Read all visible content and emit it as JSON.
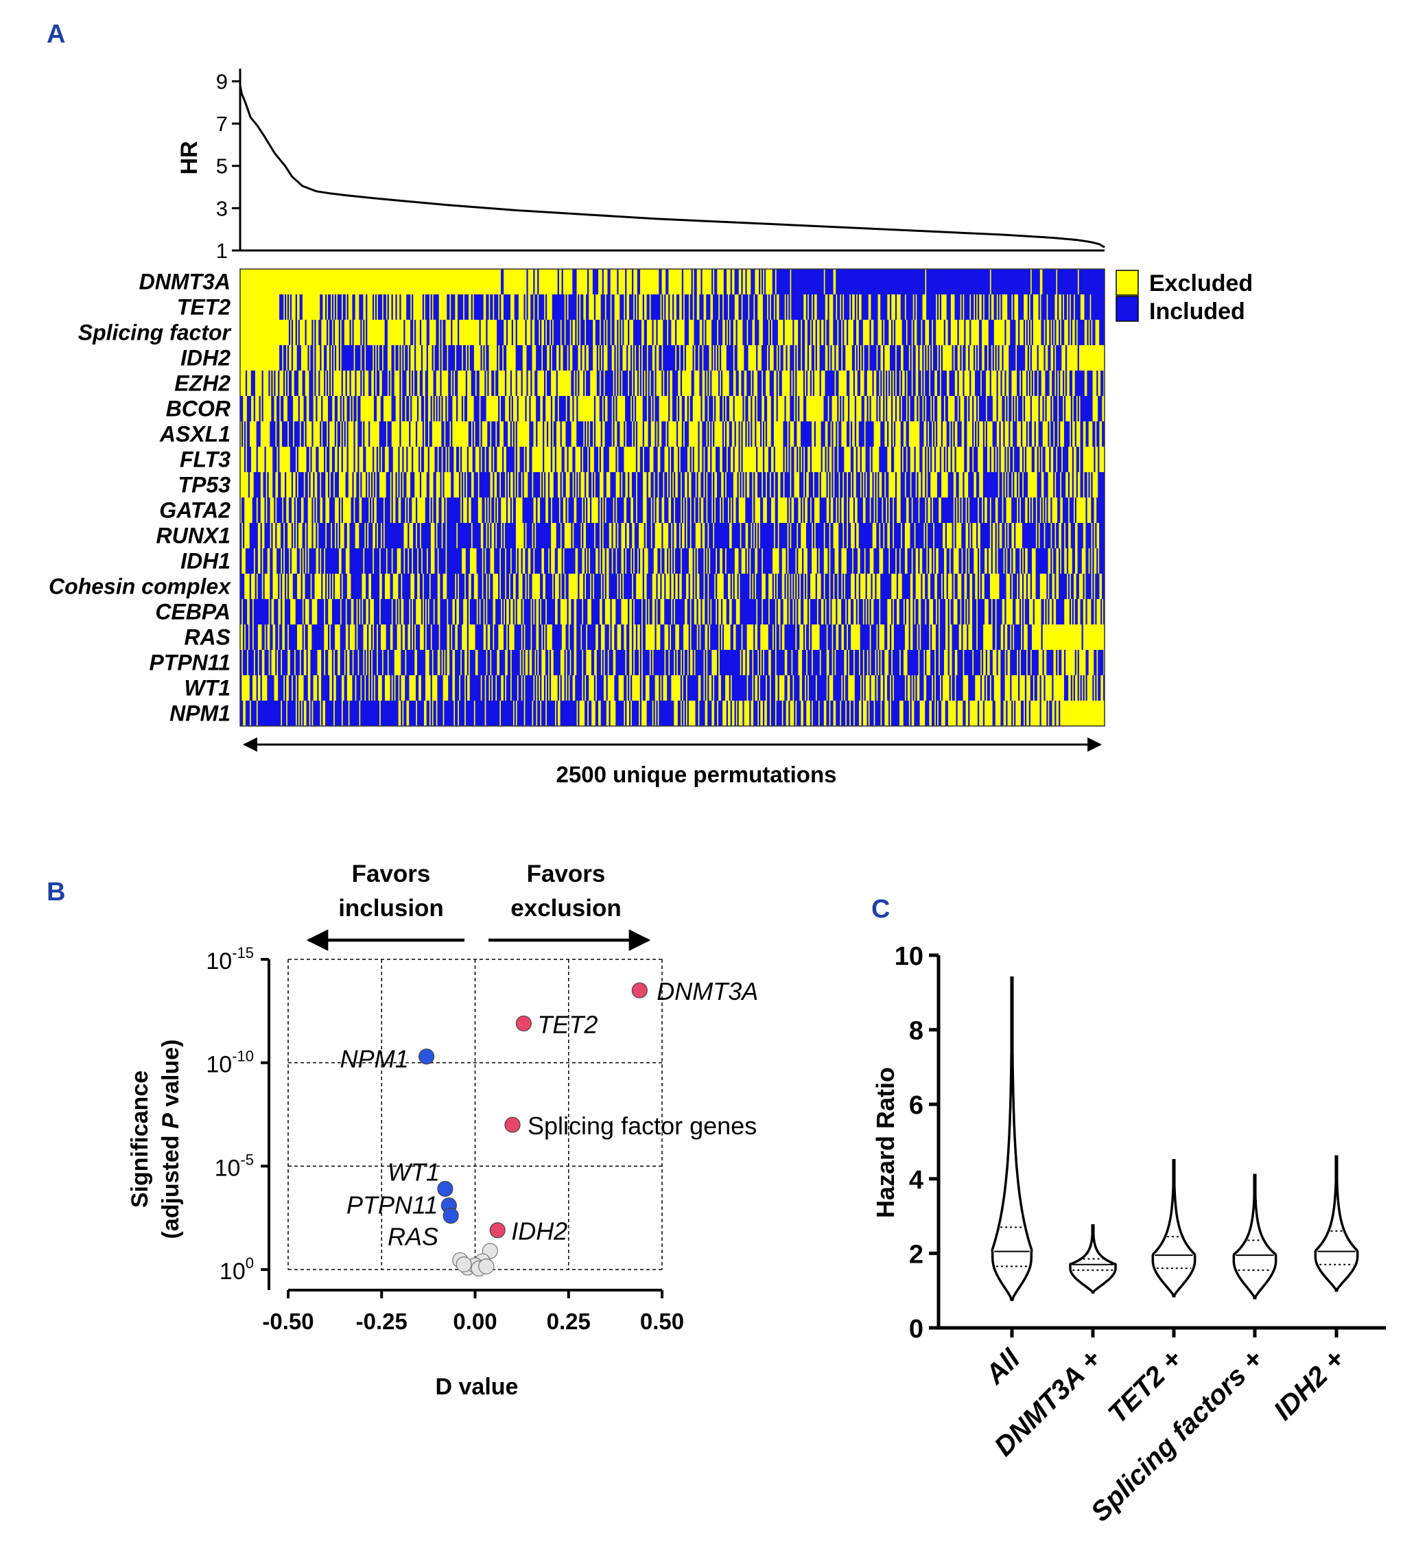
{
  "panels": {
    "a": "A",
    "b": "B",
    "c": "C"
  },
  "colors": {
    "excluded": "#ffff00",
    "included": "#1212e8",
    "favor_exclusion": "#e8456b",
    "favor_inclusion": "#2a55e0",
    "nonsig": "#e4e4e4",
    "axis": "#000000"
  },
  "chart_data": [
    {
      "id": "hr_curve",
      "type": "line",
      "ylabel": "HR",
      "yticks": [
        1,
        3,
        5,
        7,
        9
      ],
      "ylim": [
        1,
        9.6
      ],
      "xlim": [
        0,
        2500
      ],
      "x": [
        0,
        5,
        15,
        30,
        50,
        70,
        100,
        130,
        150,
        180,
        220,
        260,
        300,
        400,
        500,
        600,
        800,
        1000,
        1200,
        1400,
        1600,
        1800,
        2000,
        2200,
        2350,
        2420,
        2460,
        2485,
        2500
      ],
      "y": [
        8.8,
        8.4,
        8.0,
        7.3,
        6.9,
        6.4,
        5.6,
        5.0,
        4.5,
        4.05,
        3.8,
        3.7,
        3.62,
        3.45,
        3.3,
        3.15,
        2.9,
        2.7,
        2.5,
        2.35,
        2.2,
        2.05,
        1.9,
        1.75,
        1.6,
        1.5,
        1.4,
        1.3,
        1.15
      ]
    },
    {
      "id": "heatmap",
      "type": "heatmap",
      "rows": [
        "DNMT3A",
        "TET2",
        "Splicing factor",
        "IDH2",
        "EZH2",
        "BCOR",
        "ASXL1",
        "FLT3",
        "TP53",
        "GATA2",
        "RUNX1",
        "IDH1",
        "Cohesin complex",
        "CEBPA",
        "RAS",
        "PTPN11",
        "WT1",
        "NPM1"
      ],
      "legend": [
        "Excluded",
        "Included"
      ],
      "xlabel": "2500 unique permutations",
      "n_columns": 2500,
      "included_fraction": [
        [
          [
            0,
            0.3,
            0.0
          ],
          [
            0.3,
            0.62,
            0.25
          ],
          [
            0.62,
            1,
            0.96
          ]
        ],
        [
          [
            0,
            0.045,
            0.0
          ],
          [
            0.045,
            0.25,
            0.4
          ],
          [
            0.25,
            0.75,
            0.6
          ],
          [
            0.75,
            1,
            0.55
          ]
        ],
        [
          [
            0,
            0.045,
            0.0
          ],
          [
            0.045,
            0.35,
            0.3
          ],
          [
            0.35,
            1,
            0.45
          ]
        ],
        [
          [
            0,
            0.045,
            0.0
          ],
          [
            0.045,
            0.95,
            0.55
          ],
          [
            0.95,
            1,
            0.1
          ]
        ],
        [
          [
            0,
            1,
            0.45
          ]
        ],
        [
          [
            0,
            1,
            0.42
          ]
        ],
        [
          [
            0,
            1,
            0.4
          ]
        ],
        [
          [
            0,
            1,
            0.42
          ]
        ],
        [
          [
            0,
            0.01,
            0.0
          ],
          [
            0.01,
            1,
            0.5
          ]
        ],
        [
          [
            0,
            1,
            0.55
          ]
        ],
        [
          [
            0,
            1,
            0.58
          ]
        ],
        [
          [
            0,
            1,
            0.6
          ]
        ],
        [
          [
            0,
            1,
            0.52
          ]
        ],
        [
          [
            0,
            1,
            0.55
          ]
        ],
        [
          [
            0,
            0.92,
            0.55
          ],
          [
            0.92,
            1,
            0.05
          ]
        ],
        [
          [
            0,
            0.92,
            0.62
          ],
          [
            0.92,
            1,
            0.35
          ]
        ],
        [
          [
            0,
            0.85,
            0.55
          ],
          [
            0.85,
            1,
            0.3
          ]
        ],
        [
          [
            0,
            0.35,
            0.82
          ],
          [
            0.35,
            0.8,
            0.55
          ],
          [
            0.8,
            0.95,
            0.3
          ],
          [
            0.95,
            1,
            0.0
          ]
        ]
      ]
    },
    {
      "id": "volcano",
      "type": "scatter",
      "xlabel": "D value",
      "ylabel_line1": "Significance",
      "ylabel_line2_pre": "(adjusted ",
      "ylabel_line2_p": "P",
      "ylabel_line2_post": " value)",
      "xticks": [
        "-0.50",
        "-0.25",
        "0.00",
        "0.25",
        "0.50"
      ],
      "xtick_values": [
        -0.5,
        -0.25,
        0,
        0.25,
        0.5
      ],
      "yticks": [
        {
          "base": "10",
          "exp": "0",
          "value": 0
        },
        {
          "base": "10",
          "exp": "-5",
          "value": 5
        },
        {
          "base": "10",
          "exp": "-10",
          "value": 10
        },
        {
          "base": "10",
          "exp": "-15",
          "value": 15
        }
      ],
      "xlim": [
        -0.5,
        0.5
      ],
      "ylim_neglog10": [
        0,
        15
      ],
      "arrow_left": [
        "Favors",
        "inclusion"
      ],
      "arrow_right": [
        "Favors",
        "exclusion"
      ],
      "points": [
        {
          "label": "DNMT3A",
          "x": 0.44,
          "y": 13.5,
          "group": "exclusion",
          "italic": true
        },
        {
          "label": "TET2",
          "x": 0.13,
          "y": 11.9,
          "group": "exclusion",
          "italic": true
        },
        {
          "label": "Splicing factor genes",
          "x": 0.1,
          "y": 7.0,
          "group": "exclusion",
          "italic": false
        },
        {
          "label": "IDH2",
          "x": 0.06,
          "y": 1.9,
          "group": "exclusion",
          "italic": true
        },
        {
          "label": "NPM1",
          "x": -0.13,
          "y": 10.3,
          "group": "inclusion",
          "italic": true
        },
        {
          "label": "WT1",
          "x": -0.08,
          "y": 3.9,
          "group": "inclusion",
          "italic": true
        },
        {
          "label": "PTPN11",
          "x": -0.07,
          "y": 3.1,
          "group": "inclusion",
          "italic": true
        },
        {
          "label": "RAS",
          "x": -0.065,
          "y": 2.6,
          "group": "inclusion",
          "italic": true
        },
        {
          "label": "",
          "x": 0.04,
          "y": 0.9,
          "group": "nonsig"
        },
        {
          "label": "",
          "x": 0.02,
          "y": 0.4,
          "group": "nonsig"
        },
        {
          "label": "",
          "x": -0.04,
          "y": 0.45,
          "group": "nonsig"
        },
        {
          "label": "",
          "x": -0.02,
          "y": 0.1,
          "group": "nonsig"
        },
        {
          "label": "",
          "x": 0.0,
          "y": 0.2,
          "group": "nonsig"
        },
        {
          "label": "",
          "x": 0.01,
          "y": 0.05,
          "group": "nonsig"
        },
        {
          "label": "",
          "x": -0.03,
          "y": 0.25,
          "group": "nonsig"
        },
        {
          "label": "",
          "x": 0.03,
          "y": 0.15,
          "group": "nonsig"
        }
      ]
    },
    {
      "id": "violin",
      "type": "violin",
      "ylabel": "Hazard Ratio",
      "yticks": [
        0,
        2,
        4,
        6,
        8,
        10
      ],
      "ylim": [
        0,
        10
      ],
      "categories": [
        "All",
        "DNMT3A +",
        "TET2 +",
        "Splicing factors +",
        "IDH2 +"
      ],
      "violins": [
        {
          "min": 0.75,
          "max": 9.4,
          "q1": 1.65,
          "median": 2.05,
          "q3": 2.7,
          "max_halfwidth": 0.24
        },
        {
          "min": 0.95,
          "max": 2.75,
          "q1": 1.55,
          "median": 1.7,
          "q3": 1.85,
          "max_halfwidth": 0.28
        },
        {
          "min": 0.85,
          "max": 4.5,
          "q1": 1.6,
          "median": 1.95,
          "q3": 2.45,
          "max_halfwidth": 0.26
        },
        {
          "min": 0.8,
          "max": 4.1,
          "q1": 1.55,
          "median": 1.95,
          "q3": 2.35,
          "max_halfwidth": 0.26
        },
        {
          "min": 1.0,
          "max": 4.6,
          "q1": 1.7,
          "median": 2.05,
          "q3": 2.6,
          "max_halfwidth": 0.26
        }
      ]
    }
  ]
}
